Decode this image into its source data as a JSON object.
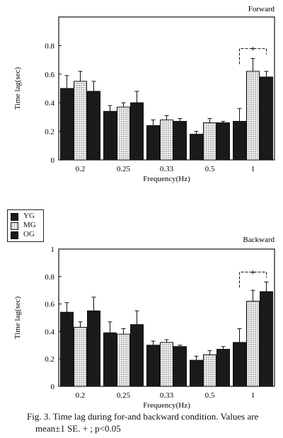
{
  "chart_data": [
    {
      "type": "bar",
      "title": "Forward",
      "xlabel": "Frequency(Hz)",
      "ylabel": "Time lag(sec)",
      "ylim": [
        0,
        1.0
      ],
      "yticks": [
        "0",
        "0.2",
        "0.4",
        "0.6",
        "0.8"
      ],
      "categories": [
        "0.2",
        "0.25",
        "0.33",
        "0.5",
        "1"
      ],
      "series": [
        {
          "name": "YG",
          "values": [
            0.5,
            0.34,
            0.24,
            0.18,
            0.27
          ],
          "se": [
            0.09,
            0.04,
            0.04,
            0.02,
            0.09
          ]
        },
        {
          "name": "MG",
          "values": [
            0.55,
            0.37,
            0.28,
            0.26,
            0.62
          ],
          "se": [
            0.07,
            0.03,
            0.03,
            0.03,
            0.09
          ]
        },
        {
          "name": "OG",
          "values": [
            0.48,
            0.4,
            0.27,
            0.26,
            0.58
          ],
          "se": [
            0.07,
            0.08,
            0.02,
            0.01,
            0.04
          ]
        }
      ],
      "annotation": "+"
    },
    {
      "type": "bar",
      "title": "Backward",
      "xlabel": "Frequency(Hz)",
      "ylabel": "Time lag(sec)",
      "ylim": [
        0,
        1.0
      ],
      "yticks": [
        "0",
        "0.2",
        "0.4",
        "0.6",
        "0.8",
        "1"
      ],
      "categories": [
        "0.2",
        "0.25",
        "0.33",
        "0.5",
        "1"
      ],
      "series": [
        {
          "name": "YG",
          "values": [
            0.54,
            0.39,
            0.3,
            0.19,
            0.32
          ],
          "se": [
            0.07,
            0.08,
            0.03,
            0.03,
            0.1
          ]
        },
        {
          "name": "MG",
          "values": [
            0.43,
            0.38,
            0.32,
            0.23,
            0.62
          ],
          "se": [
            0.04,
            0.04,
            0.02,
            0.03,
            0.08
          ]
        },
        {
          "name": "OG",
          "values": [
            0.55,
            0.45,
            0.29,
            0.27,
            0.69
          ],
          "se": [
            0.1,
            0.1,
            0.01,
            0.02,
            0.07
          ]
        }
      ],
      "annotation": "+"
    }
  ],
  "legend": [
    {
      "label": "YG",
      "fill": "#1a1a1a"
    },
    {
      "label": "MG",
      "fill": "dots"
    },
    {
      "label": "OG",
      "fill": "#1a1a1a"
    }
  ],
  "caption": {
    "line1": "Fig. 3.  Time lag during for-and backward condition. Values are",
    "line2": "mean±1 SE. + ; p<0.05"
  }
}
